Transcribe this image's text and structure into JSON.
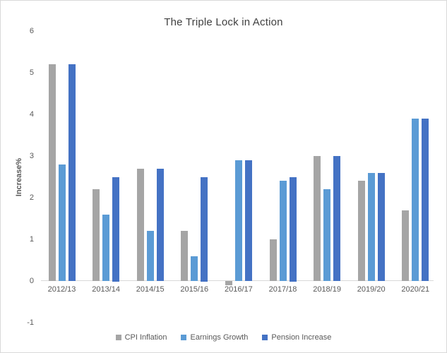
{
  "chart_data": {
    "type": "bar",
    "title": "The Triple Lock in Action",
    "xlabel": "",
    "ylabel": "Increase%",
    "categories": [
      "2012/13",
      "2013/14",
      "2014/15",
      "2015/16",
      "2016/17",
      "2017/18",
      "2018/19",
      "2019/20",
      "2020/21"
    ],
    "series": [
      {
        "name": "CPI Inflation",
        "color": "#a5a5a5",
        "values": [
          5.2,
          2.2,
          2.7,
          1.2,
          -0.1,
          1.0,
          3.0,
          2.4,
          1.7
        ]
      },
      {
        "name": "Earnings Growth",
        "color": "#5b9bd5",
        "values": [
          2.8,
          1.6,
          1.2,
          0.6,
          2.9,
          2.4,
          2.2,
          2.6,
          3.9
        ]
      },
      {
        "name": "Pension Increase",
        "color": "#4472c4",
        "values": [
          5.2,
          2.5,
          2.7,
          2.5,
          2.9,
          2.5,
          3.0,
          2.6,
          3.9
        ]
      }
    ],
    "ylim": [
      -1,
      6
    ],
    "yticks": [
      6,
      5,
      4,
      3,
      2,
      1,
      0,
      -1
    ],
    "grid": false,
    "legend_position": "bottom"
  },
  "colors": {
    "axis_line": "#d9d9d9",
    "tick_text": "#595959",
    "title_text": "#404040"
  }
}
